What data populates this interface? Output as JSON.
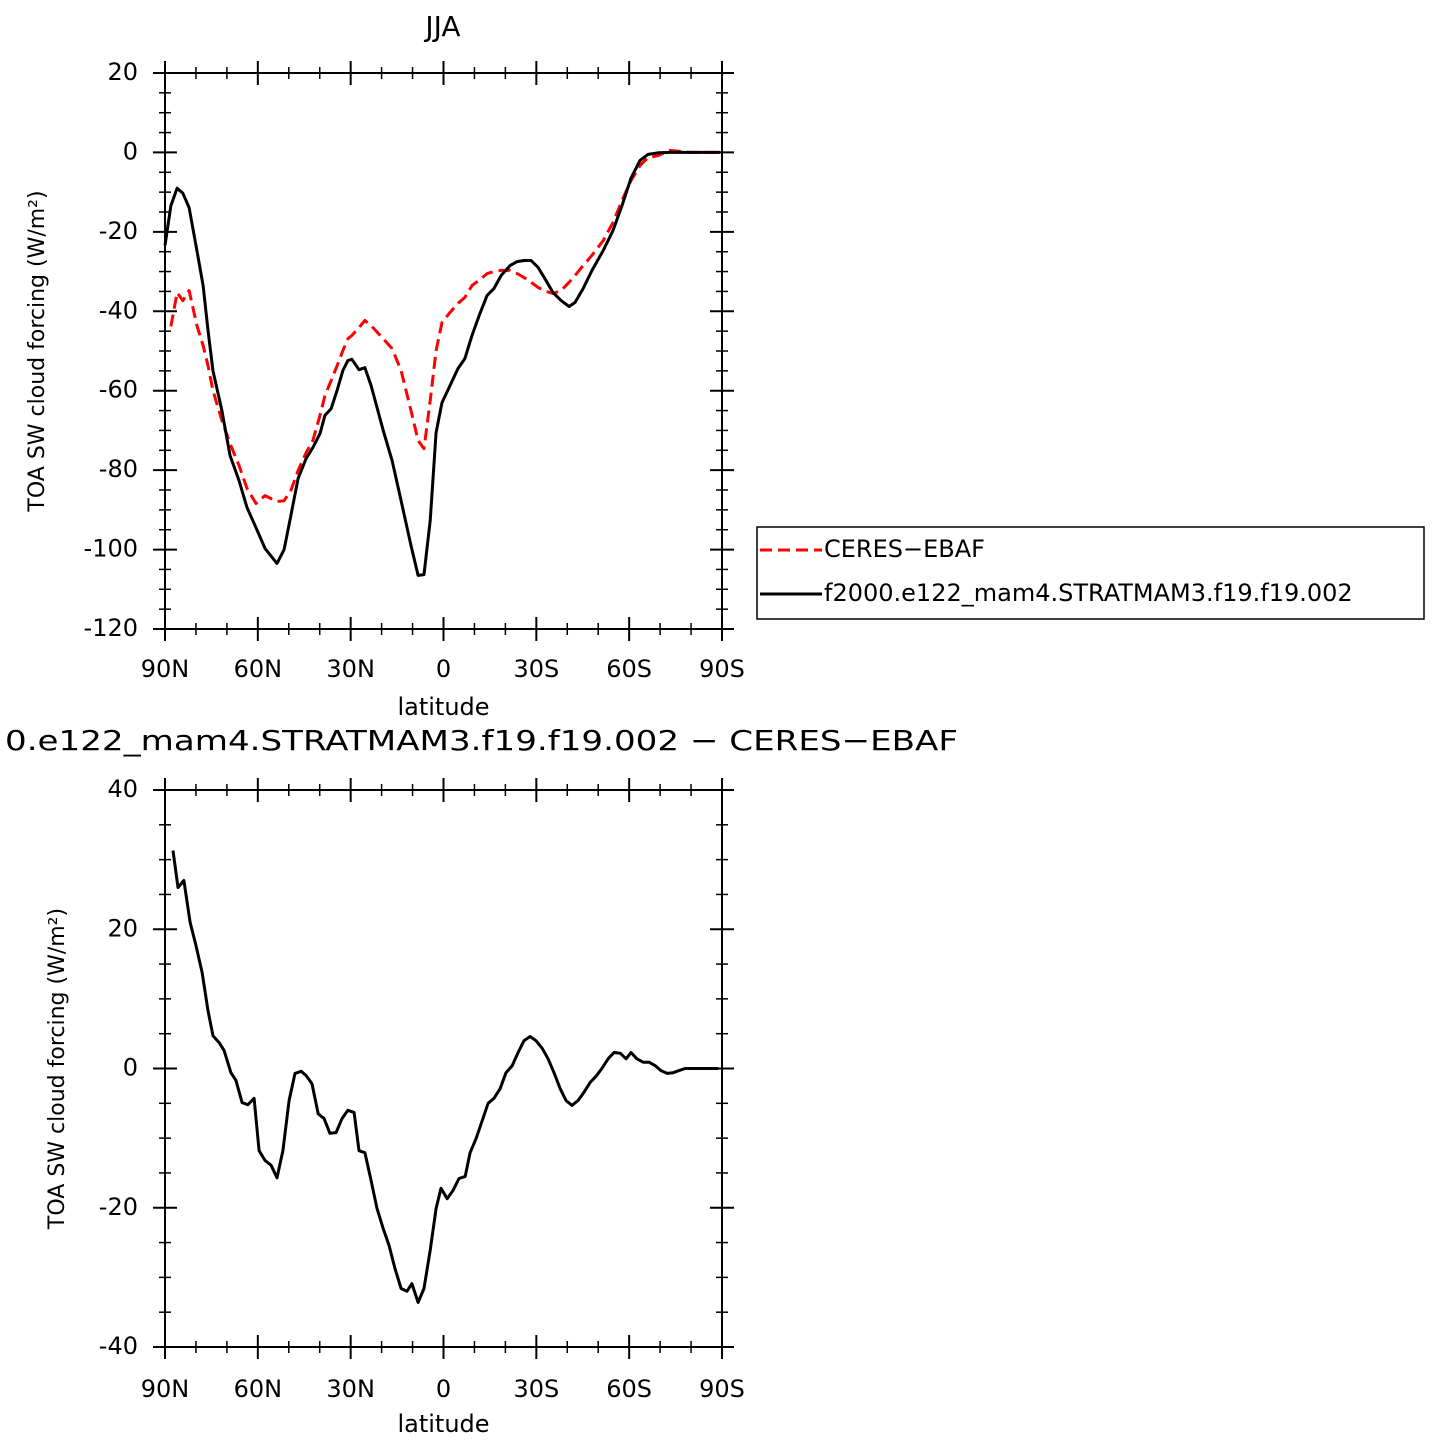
{
  "chart_data": [
    {
      "type": "line",
      "title": "JJA",
      "xlabel": "latitude",
      "ylabel": "TOA SW cloud forcing (W/m²)",
      "xlim": [
        90,
        -90
      ],
      "xticks": [
        {
          "value": 90,
          "label": "90N"
        },
        {
          "value": 60,
          "label": "60N"
        },
        {
          "value": 30,
          "label": "30N"
        },
        0,
        {
          "value": -30,
          "label": "30S"
        },
        {
          "value": -60,
          "label": "60S"
        },
        {
          "value": -90,
          "label": "90S"
        }
      ],
      "ylim": [
        -120,
        20
      ],
      "yticks": [
        -120,
        -100,
        -80,
        -60,
        -40,
        -20,
        0,
        20
      ],
      "legend": "right",
      "x": [
        90,
        88.1,
        86.1,
        84.2,
        82.2,
        79.7,
        77.7,
        76.1,
        74.5,
        71.6,
        69,
        66.1,
        63.5,
        60.6,
        57.7,
        53.8,
        51.5,
        49.3,
        47,
        44.4,
        42.2,
        39.9,
        38.3,
        36.3,
        34.4,
        32.5,
        30.9,
        29.6,
        27.3,
        25.4,
        23.4,
        19.5,
        16.6,
        13.7,
        10.5,
        8.2,
        6.3,
        4.3,
        2.4,
        0.5,
        -2.1,
        -4.7,
        -6.9,
        -9.2,
        -11.5,
        -14.1,
        -16.3,
        -18.6,
        -21.5,
        -23.8,
        -26,
        -28.3,
        -30.6,
        -33.1,
        -35.4,
        -38,
        -40.6,
        -42.5,
        -45.1,
        -48,
        -51.6,
        -54.8,
        -57.7,
        -60.6,
        -63.5,
        -66.1,
        -69.3,
        -73.2,
        -79.7,
        -89.4
      ],
      "series": [
        {
          "name": "CERES−EBAF",
          "color": "#ff0000",
          "dash": "dashed",
          "values": [
            null,
            -43.8,
            -35.3,
            -37.3,
            -34.8,
            -43.6,
            -48.6,
            -53.7,
            -60,
            -67.5,
            -73.3,
            -78.8,
            -84.6,
            -88.4,
            -86.4,
            -87.9,
            -87.7,
            -85.1,
            -80.1,
            -75.6,
            -72.5,
            -66.2,
            -61.2,
            -57.4,
            -53.7,
            -49.9,
            -46.9,
            -46.1,
            -44.1,
            -42.3,
            -43.6,
            -46.9,
            -49.4,
            -54.9,
            -65,
            -72.5,
            -74.6,
            -62.5,
            -49.9,
            -42.8,
            -40.3,
            -38,
            -36.5,
            -33.5,
            -32.2,
            -30.5,
            -30,
            -29.7,
            -29.7,
            -30.5,
            -31.5,
            -32.7,
            -34,
            -35,
            -35.5,
            -34.8,
            -32.7,
            -31,
            -28.5,
            -25.9,
            -22.2,
            -17.6,
            -12.1,
            -7.1,
            -3.3,
            -1.3,
            -0.8,
            0.5,
            0,
            0
          ]
        },
        {
          "name": "f2000.e122_mam4.STRATMAM3.f19.f19.002",
          "color": "#000000",
          "dash": "solid",
          "values": [
            -23.4,
            -13.4,
            -9,
            -10.3,
            -13.9,
            -24.7,
            -33.5,
            -44.8,
            -55,
            -65,
            -76.3,
            -82.6,
            -89.4,
            -94.5,
            -99.7,
            -103.5,
            -100,
            -91.4,
            -82.1,
            -77.1,
            -74.3,
            -70.8,
            -66.2,
            -64.5,
            -59.9,
            -54.9,
            -52.4,
            -52.1,
            -54.7,
            -54.2,
            -58.7,
            -70,
            -77.6,
            -87.7,
            -99,
            -106.5,
            -106.3,
            -92.7,
            -70.5,
            -63,
            -58.7,
            -54.4,
            -51.9,
            -46.1,
            -41.1,
            -36,
            -34.3,
            -31,
            -28.5,
            -27.5,
            -27.2,
            -27.2,
            -29,
            -32.2,
            -35.3,
            -37.3,
            -38.8,
            -37.8,
            -34.3,
            -29.7,
            -24.7,
            -19.6,
            -13.4,
            -6.5,
            -2,
            -0.5,
            -0.1,
            0,
            0,
            0
          ]
        }
      ]
    },
    {
      "type": "line",
      "title": "0.e122_mam4.STRATMAM3.f19.f19.002 − CERES−EBAF",
      "xlabel": "latitude",
      "ylabel": "TOA SW cloud forcing (W/m²)",
      "xlim": [
        90,
        -90
      ],
      "xticks": [
        {
          "value": 90,
          "label": "90N"
        },
        {
          "value": 60,
          "label": "60N"
        },
        {
          "value": 30,
          "label": "30N"
        },
        0,
        {
          "value": -30,
          "label": "30S"
        },
        {
          "value": -60,
          "label": "60S"
        },
        {
          "value": -90,
          "label": "90S"
        }
      ],
      "ylim": [
        -40,
        40
      ],
      "yticks": [
        -40,
        -20,
        0,
        20,
        40
      ],
      "x": [
        87.4,
        85.8,
        83.9,
        81.9,
        80,
        78,
        76.1,
        74.5,
        72.5,
        70.9,
        68.7,
        67.1,
        65.1,
        63.2,
        61.2,
        59.6,
        57.7,
        55.7,
        53.8,
        51.9,
        49.9,
        48,
        46,
        44.4,
        42.5,
        40.5,
        38.6,
        36.7,
        34.7,
        32.8,
        30.9,
        28.9,
        27.3,
        25.4,
        23.4,
        21.5,
        19.5,
        17.6,
        15.7,
        13.7,
        11.8,
        10.2,
        8.2,
        6.3,
        4.3,
        2.4,
        0.8,
        -1.2,
        -3.1,
        -5,
        -7,
        -8.6,
        -10.5,
        -12.5,
        -14.4,
        -16.3,
        -18.3,
        -20.2,
        -22.2,
        -24.1,
        -26,
        -28,
        -29.9,
        -31.9,
        -33.8,
        -35.7,
        -37.7,
        -39.6,
        -41.5,
        -43.5,
        -45.4,
        -47.4,
        -49.3,
        -51.2,
        -53.2,
        -55.1,
        -57.1,
        -59,
        -60.6,
        -62.5,
        -64.5,
        -66.4,
        -68.4,
        -70.3,
        -72.3,
        -74.2,
        -76.1,
        -78.1,
        -82.9,
        -88.8
      ],
      "series": [
        {
          "color": "#000000",
          "dash": "solid",
          "values": [
            31.3,
            26,
            27,
            21,
            17.7,
            13.8,
            8.3,
            4.7,
            3.7,
            2.6,
            -0.6,
            -1.7,
            -4.9,
            -5.2,
            -4.3,
            -11.8,
            -13.2,
            -13.9,
            -15.7,
            -11.8,
            -4.6,
            -0.7,
            -0.4,
            -1,
            -2.2,
            -6.5,
            -7.2,
            -9.3,
            -9.2,
            -7.2,
            -6,
            -6.3,
            -11.8,
            -12.1,
            -16.1,
            -20.1,
            -23,
            -25.4,
            -28.7,
            -31.6,
            -32,
            -30.9,
            -33.6,
            -31.6,
            -26.1,
            -20.1,
            -17.2,
            -18.7,
            -17.5,
            -15.8,
            -15.5,
            -12.1,
            -10.1,
            -7.5,
            -5,
            -4.3,
            -2.9,
            -0.6,
            0.4,
            2.3,
            4,
            4.6,
            4,
            2.9,
            1.4,
            -0.6,
            -2.9,
            -4.6,
            -5.3,
            -4.6,
            -3.4,
            -2,
            -1.1,
            0,
            1.4,
            2.3,
            2.2,
            1.4,
            2.3,
            1.4,
            0.9,
            0.9,
            0.4,
            -0.3,
            -0.7,
            -0.6,
            -0.3,
            0,
            0,
            0
          ]
        }
      ]
    }
  ]
}
